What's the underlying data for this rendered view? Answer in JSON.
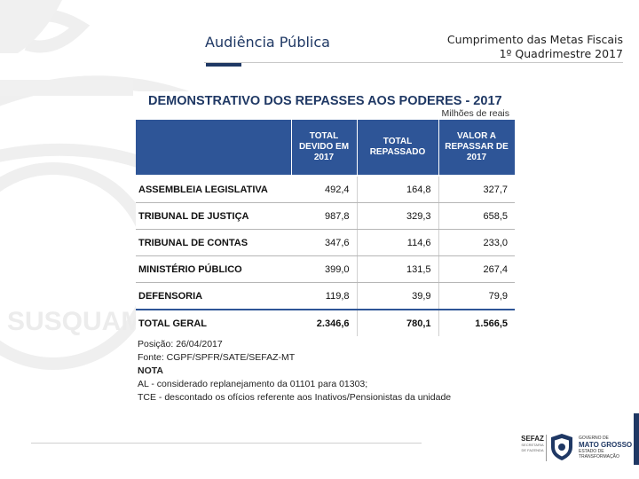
{
  "slide": {
    "title": "Audiência Pública",
    "header_line1": "Cumprimento das Metas Fiscais",
    "header_line2": "1º Quadrimestre 2017",
    "watermark_text": "SUSQUAM"
  },
  "report": {
    "title": "DEMONSTRATIVO DOS REPASSES AOS PODERES - 2017",
    "units": "Milhões de reais",
    "columns": [
      "",
      "TOTAL DEVIDO EM 2017",
      "TOTAL REPASSADO",
      "VALOR A REPASSAR DE 2017"
    ],
    "rows": [
      {
        "label": "ASSEMBLEIA LEGISLATIVA",
        "devido": "492,4",
        "repassado": "164,8",
        "a_repassar": "327,7"
      },
      {
        "label": "TRIBUNAL DE JUSTIÇA",
        "devido": "987,8",
        "repassado": "329,3",
        "a_repassar": "658,5"
      },
      {
        "label": "TRIBUNAL DE CONTAS",
        "devido": "347,6",
        "repassado": "114,6",
        "a_repassar": "233,0"
      },
      {
        "label": "MINISTÉRIO PÚBLICO",
        "devido": "399,0",
        "repassado": "131,5",
        "a_repassar": "267,4"
      },
      {
        "label": "DEFENSORIA",
        "devido": "119,8",
        "repassado": "39,9",
        "a_repassar": "79,9"
      }
    ],
    "total": {
      "label": "TOTAL GERAL",
      "devido": "2.346,6",
      "repassado": "780,1",
      "a_repassar": "1.566,5"
    },
    "notes": {
      "posicao": "Posição: 26/04/2017",
      "fonte": "Fonte: CGPF/SPFR/SATE/SEFAZ-MT",
      "nota_heading": "NOTA",
      "nota_al": "AL - considerado replanejamento da 01101 para 01303;",
      "nota_tce": "TCE - descontado os ofícios referente aos Inativos/Pensionistas da unidade"
    }
  },
  "footer": {
    "sefaz_name": "SEFAZ",
    "sefaz_sub": "SECRETARIA DE FAZENDA",
    "gov_line1": "GOVERNO DE",
    "gov_state": "MATO GROSSO",
    "gov_line3": "ESTADO DE TRANSFORMAÇÃO"
  },
  "colors": {
    "navy": "#1f3864",
    "table_header": "#2e5597"
  }
}
